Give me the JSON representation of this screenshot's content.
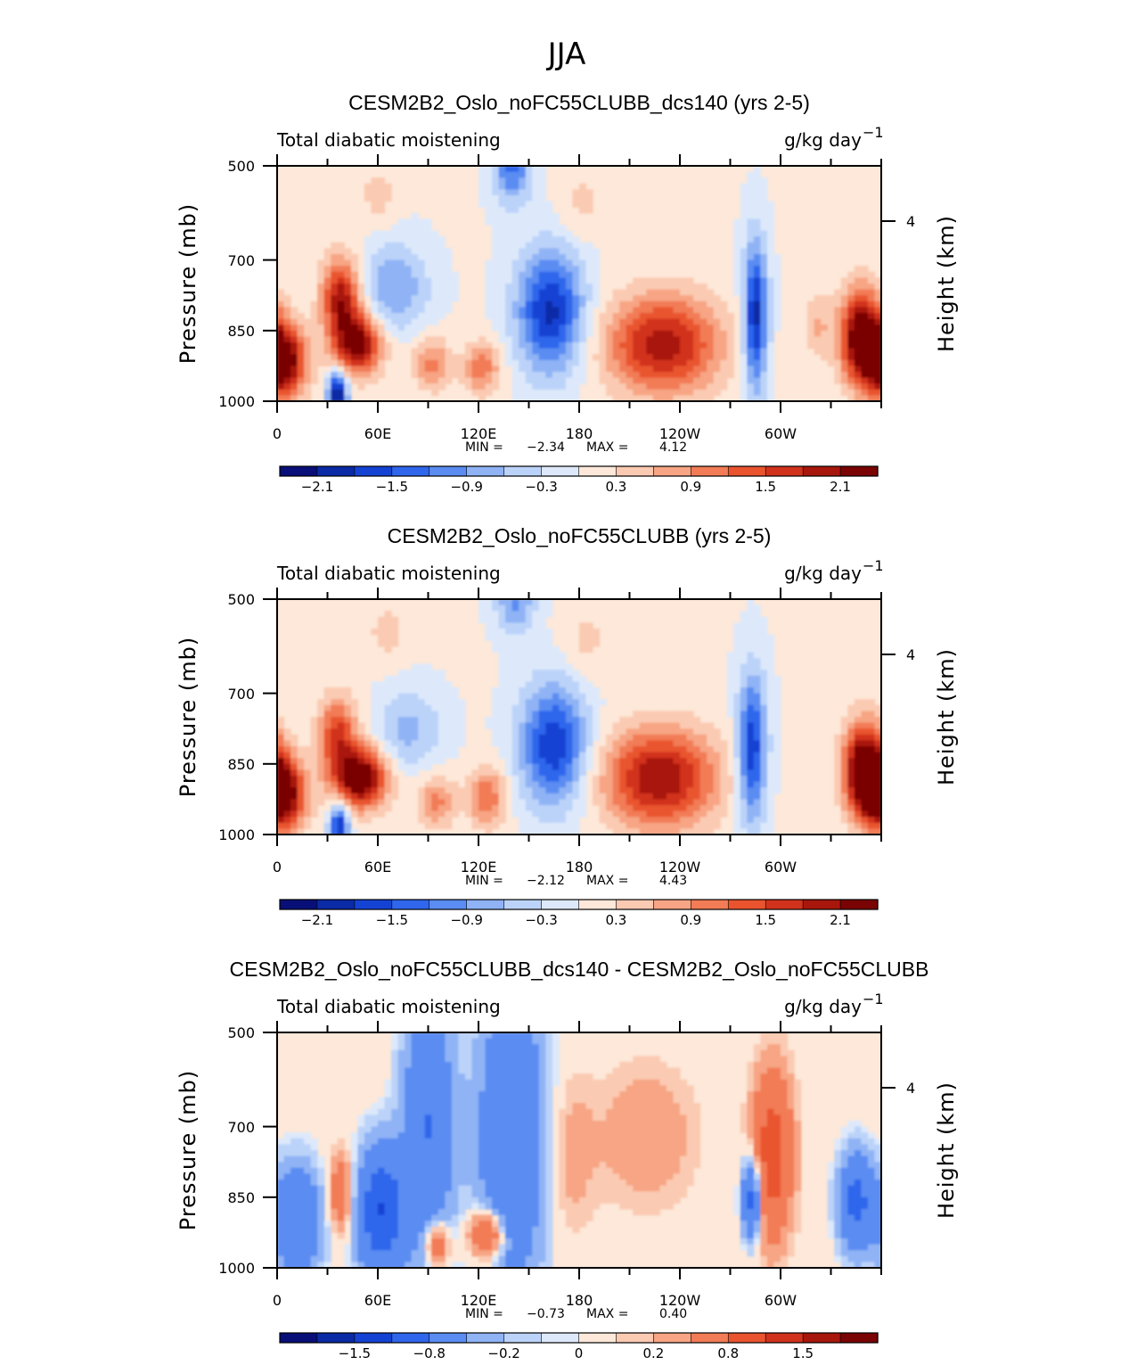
{
  "figure_title": "JJA",
  "chart_data": [
    {
      "type": "heatmap",
      "title": "CESM2B2_Oslo_noFC55CLUBB_dcs140 (yrs 2-5)",
      "variable": "Total diabatic moistening",
      "units": "g/kg day",
      "units_exp": "−1",
      "xlabel": "",
      "ylabel": "Pressure (mb)",
      "y2label": "Height (km)",
      "x_ticklabels": [
        "0",
        "60E",
        "120E",
        "180",
        "120W",
        "60W"
      ],
      "y_ticklabels": [
        "500",
        "700",
        "850",
        "1000"
      ],
      "y2_ticklabels": [
        "4"
      ],
      "xlim": [
        0,
        360
      ],
      "ylim": [
        1000,
        500
      ],
      "min_label": "MIN =",
      "min_value": "−2.34",
      "max_label": "MAX =",
      "max_value": "4.12",
      "colorbar_labels": [
        "−2.1",
        "−1.5",
        "−0.9",
        "−0.3",
        "0.3",
        "0.9",
        "1.5",
        "2.1"
      ],
      "colorbar_levels": 16,
      "blobs": [
        {
          "lon": 3,
          "p": 915,
          "v": 2.6,
          "s": 10,
          "sp": 55
        },
        {
          "lon": 38,
          "p": 780,
          "v": 2.0,
          "s": 8,
          "sp": 60
        },
        {
          "lon": 48,
          "p": 880,
          "v": 2.3,
          "s": 10,
          "sp": 45
        },
        {
          "lon": 36,
          "p": 985,
          "v": -2.3,
          "s": 4,
          "sp": 35
        },
        {
          "lon": 60,
          "p": 560,
          "v": 0.45,
          "s": 8,
          "sp": 45
        },
        {
          "lon": 70,
          "p": 760,
          "v": -0.9,
          "s": 14,
          "sp": 65
        },
        {
          "lon": 92,
          "p": 920,
          "v": 1.0,
          "s": 8,
          "sp": 40
        },
        {
          "lon": 122,
          "p": 930,
          "v": 1.1,
          "s": 8,
          "sp": 40
        },
        {
          "lon": 140,
          "p": 500,
          "v": -1.3,
          "s": 8,
          "sp": 55
        },
        {
          "lon": 163,
          "p": 810,
          "v": -1.9,
          "s": 14,
          "sp": 90
        },
        {
          "lon": 182,
          "p": 580,
          "v": 0.4,
          "s": 10,
          "sp": 55
        },
        {
          "lon": 230,
          "p": 880,
          "v": 2.0,
          "s": 24,
          "sp": 75
        },
        {
          "lon": 285,
          "p": 820,
          "v": -2.0,
          "s": 5,
          "sp": 110
        },
        {
          "lon": 348,
          "p": 860,
          "v": 2.5,
          "s": 9,
          "sp": 70
        },
        {
          "lon": 322,
          "p": 840,
          "v": 0.6,
          "s": 6,
          "sp": 50
        }
      ]
    },
    {
      "type": "heatmap",
      "title": "CESM2B2_Oslo_noFC55CLUBB (yrs 2-5)",
      "variable": "Total diabatic moistening",
      "units": "g/kg day",
      "units_exp": "−1",
      "xlabel": "",
      "ylabel": "Pressure (mb)",
      "y2label": "Height (km)",
      "x_ticklabels": [
        "0",
        "60E",
        "120E",
        "180",
        "120W",
        "60W"
      ],
      "y_ticklabels": [
        "500",
        "700",
        "850",
        "1000"
      ],
      "y2_ticklabels": [
        "4"
      ],
      "xlim": [
        0,
        360
      ],
      "ylim": [
        1000,
        500
      ],
      "min_label": "MIN =",
      "min_value": "−2.12",
      "max_label": "MAX =",
      "max_value": "4.43",
      "colorbar_labels": [
        "−2.1",
        "−1.5",
        "−0.9",
        "−0.3",
        "0.3",
        "0.9",
        "1.5",
        "2.1"
      ],
      "colorbar_levels": 16,
      "blobs": [
        {
          "lon": 3,
          "p": 915,
          "v": 2.5,
          "s": 10,
          "sp": 55
        },
        {
          "lon": 36,
          "p": 790,
          "v": 1.6,
          "s": 8,
          "sp": 60
        },
        {
          "lon": 50,
          "p": 880,
          "v": 2.6,
          "s": 11,
          "sp": 45
        },
        {
          "lon": 37,
          "p": 980,
          "v": -1.9,
          "s": 4,
          "sp": 35
        },
        {
          "lon": 65,
          "p": 570,
          "v": 0.45,
          "s": 8,
          "sp": 45
        },
        {
          "lon": 78,
          "p": 780,
          "v": -0.7,
          "s": 14,
          "sp": 60
        },
        {
          "lon": 95,
          "p": 930,
          "v": 1.0,
          "s": 8,
          "sp": 40
        },
        {
          "lon": 125,
          "p": 920,
          "v": 1.2,
          "s": 8,
          "sp": 45
        },
        {
          "lon": 142,
          "p": 500,
          "v": -1.0,
          "s": 8,
          "sp": 50
        },
        {
          "lon": 165,
          "p": 810,
          "v": -1.8,
          "s": 14,
          "sp": 90
        },
        {
          "lon": 184,
          "p": 590,
          "v": 0.4,
          "s": 10,
          "sp": 55
        },
        {
          "lon": 228,
          "p": 880,
          "v": 2.1,
          "s": 24,
          "sp": 75
        },
        {
          "lon": 283,
          "p": 820,
          "v": -1.8,
          "s": 6,
          "sp": 110
        },
        {
          "lon": 350,
          "p": 860,
          "v": 2.6,
          "s": 9,
          "sp": 70
        }
      ]
    },
    {
      "type": "heatmap",
      "title": "CESM2B2_Oslo_noFC55CLUBB_dcs140 - CESM2B2_Oslo_noFC55CLUBB",
      "variable": "Total diabatic moistening",
      "units": "g/kg day",
      "units_exp": "−1",
      "xlabel": "",
      "ylabel": "Pressure (mb)",
      "y2label": "Height (km)",
      "x_ticklabels": [
        "0",
        "60E",
        "120E",
        "180",
        "120W",
        "60W"
      ],
      "y_ticklabels": [
        "500",
        "700",
        "850",
        "1000"
      ],
      "y2_ticklabels": [
        "4"
      ],
      "xlim": [
        0,
        360
      ],
      "ylim": [
        1000,
        500
      ],
      "min_label": "MIN =",
      "min_value": "−0.73",
      "max_label": "MAX =",
      "max_value": "0.40",
      "colorbar_labels": [
        "−1.5",
        "−0.8",
        "−0.2",
        "0",
        "0.2",
        "0.8",
        "1.5"
      ],
      "colorbar_levels": 16,
      "blobs": [
        {
          "lon": 12,
          "p": 900,
          "v": -0.5,
          "s": 10,
          "sp": 80
        },
        {
          "lon": 38,
          "p": 840,
          "v": 0.4,
          "s": 5,
          "sp": 60
        },
        {
          "lon": 62,
          "p": 880,
          "v": -0.8,
          "s": 10,
          "sp": 90
        },
        {
          "lon": 90,
          "p": 700,
          "v": -0.5,
          "s": 10,
          "sp": 200
        },
        {
          "lon": 95,
          "p": 950,
          "v": 0.5,
          "s": 5,
          "sp": 35
        },
        {
          "lon": 125,
          "p": 930,
          "v": 0.6,
          "s": 7,
          "sp": 35
        },
        {
          "lon": 140,
          "p": 720,
          "v": -0.5,
          "s": 14,
          "sp": 220
        },
        {
          "lon": 175,
          "p": 760,
          "v": 0.15,
          "s": 10,
          "sp": 120
        },
        {
          "lon": 220,
          "p": 720,
          "v": 0.2,
          "s": 20,
          "sp": 100
        },
        {
          "lon": 283,
          "p": 850,
          "v": -0.7,
          "s": 4,
          "sp": 60
        },
        {
          "lon": 295,
          "p": 760,
          "v": 0.7,
          "s": 8,
          "sp": 120
        },
        {
          "lon": 345,
          "p": 860,
          "v": -0.6,
          "s": 7,
          "sp": 70
        }
      ]
    }
  ],
  "colorbar_colors": [
    "#080f78",
    "#0a2aa6",
    "#1443d4",
    "#2f66ec",
    "#5a8cf2",
    "#8fb3f5",
    "#bcd3f9",
    "#dde9fb",
    "#fde8d9",
    "#fbcab2",
    "#f7a584",
    "#f27c56",
    "#e9542f",
    "#d1321c",
    "#a8170c",
    "#7a0403"
  ]
}
